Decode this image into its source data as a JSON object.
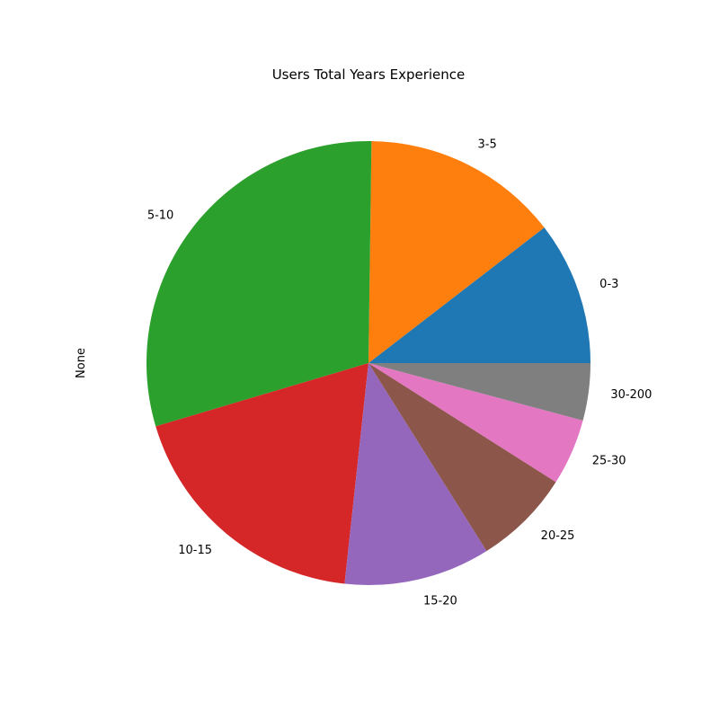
{
  "chart_data": {
    "type": "pie",
    "title": "Users Total Years Experience",
    "ylabel": "None",
    "categories": [
      "0-3",
      "3-5",
      "5-10",
      "10-15",
      "15-20",
      "20-25",
      "25-30",
      "30-200"
    ],
    "values": [
      10.8,
      14.8,
      30.8,
      19.3,
      11.0,
      7.3,
      5.0,
      4.3
    ],
    "colors": [
      "#1f77b4",
      "#ff7f0e",
      "#2ca02c",
      "#d62728",
      "#9467bd",
      "#8c564b",
      "#e377c2",
      "#7f7f7f"
    ],
    "start_angle_deg": 0,
    "direction": "counterclockwise",
    "legend": "none"
  }
}
